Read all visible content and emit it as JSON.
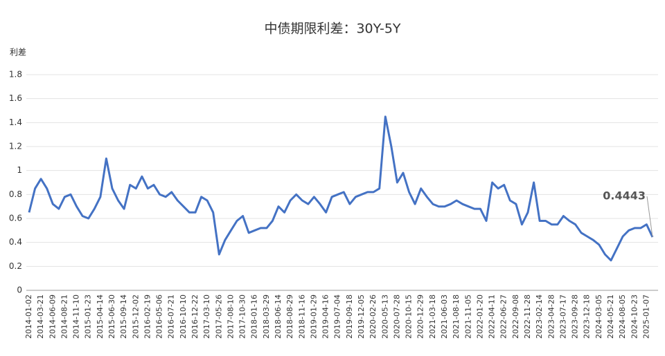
{
  "chart_data": {
    "type": "line",
    "title": "中债期限利差：30Y-5Y",
    "y_axis_label": "利差",
    "categories": [
      "2014-01-02",
      null,
      "2014-03-21",
      null,
      "2014-06-09",
      null,
      "2014-08-21",
      null,
      "2014-11-10",
      null,
      "2015-01-23",
      null,
      "2015-04-14",
      null,
      "2015-06-30",
      null,
      "2015-09-14",
      null,
      "2015-12-02",
      null,
      "2016-02-19",
      null,
      "2016-05-06",
      null,
      "2016-07-21",
      null,
      "2016-10-10",
      null,
      "2016-12-22",
      null,
      "2017-03-10",
      null,
      "2017-05-26",
      null,
      "2017-08-10",
      null,
      "2017-10-30",
      null,
      "2018-01-16",
      null,
      "2018-03-29",
      null,
      "2018-06-14",
      null,
      "2018-08-29",
      null,
      "2018-11-16",
      null,
      "2019-01-29",
      null,
      "2019-04-16",
      null,
      "2019-07-04",
      null,
      "2019-09-18",
      null,
      "2019-12-05",
      null,
      "2020-02-26",
      null,
      "2020-05-13",
      null,
      "2020-07-28",
      null,
      "2020-10-15",
      null,
      "2020-12-29",
      null,
      "2021-03-18",
      null,
      "2021-06-03",
      null,
      "2021-08-18",
      null,
      "2021-11-05",
      null,
      "2022-01-20",
      null,
      "2022-04-11",
      null,
      "2022-06-27",
      null,
      "2022-09-08",
      null,
      "2022-11-28",
      null,
      "2023-02-14",
      null,
      "2023-04-28",
      null,
      "2023-07-17",
      null,
      "2023-09-28",
      null,
      "2023-12-18",
      null,
      "2024-03-05",
      null,
      "2024-05-21",
      null,
      "2024-08-05",
      null,
      "2024-10-23",
      null,
      "2025-01-07",
      null
    ],
    "series": [
      {
        "name": "利差",
        "color": "#4472c4",
        "values": [
          0.65,
          0.85,
          0.93,
          0.85,
          0.72,
          0.68,
          0.78,
          0.8,
          0.7,
          0.62,
          0.6,
          0.68,
          0.78,
          1.1,
          0.85,
          0.75,
          0.68,
          0.88,
          0.85,
          0.95,
          0.85,
          0.88,
          0.8,
          0.78,
          0.82,
          0.75,
          0.7,
          0.65,
          0.65,
          0.78,
          0.75,
          0.65,
          0.3,
          0.42,
          0.5,
          0.58,
          0.62,
          0.48,
          0.5,
          0.52,
          0.52,
          0.58,
          0.7,
          0.65,
          0.75,
          0.8,
          0.75,
          0.72,
          0.78,
          0.72,
          0.65,
          0.78,
          0.8,
          0.82,
          0.72,
          0.78,
          0.8,
          0.82,
          0.82,
          0.85,
          1.45,
          1.2,
          0.9,
          0.98,
          0.82,
          0.72,
          0.85,
          0.78,
          0.72,
          0.7,
          0.7,
          0.72,
          0.75,
          0.72,
          0.7,
          0.68,
          0.68,
          0.58,
          0.9,
          0.85,
          0.88,
          0.75,
          0.72,
          0.55,
          0.65,
          0.9,
          0.58,
          0.58,
          0.55,
          0.55,
          0.62,
          0.58,
          0.55,
          0.48,
          0.45,
          0.42,
          0.38,
          0.3,
          0.25,
          0.35,
          0.45,
          0.5,
          0.52,
          0.52,
          0.55,
          0.4443
        ]
      }
    ],
    "ylim": [
      0,
      1.8
    ],
    "yticks": [
      0,
      0.2,
      0.4,
      0.6,
      0.8,
      1,
      1.2,
      1.4,
      1.6,
      1.8
    ],
    "grid": true
  }
}
